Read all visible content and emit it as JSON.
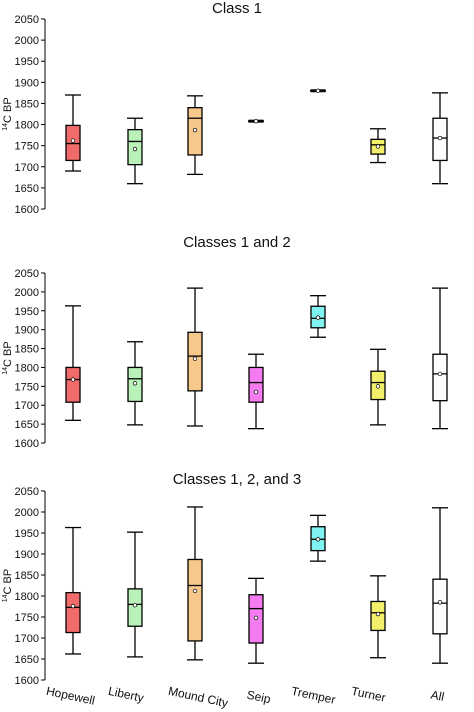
{
  "chart_data": [
    {
      "type": "boxplot",
      "title": "Class 1",
      "ylabel": "14C BP",
      "ylim": [
        1600,
        2050
      ],
      "yticks": [
        1600,
        1650,
        1700,
        1750,
        1800,
        1850,
        1900,
        1950,
        2000,
        2050
      ],
      "categories": [
        "Hopewell",
        "Liberty",
        "Mound City",
        "Seip",
        "Tremper",
        "Turner",
        "All"
      ],
      "colors": [
        "#f26b6b",
        "#b9f2b9",
        "#f6c98a",
        "#f26b6b",
        "#7ff2f2",
        "#f2ef6b",
        "#ffffff"
      ],
      "boxes": [
        {
          "min": 1690,
          "q1": 1715,
          "median": 1755,
          "q3": 1798,
          "max": 1870,
          "mean": 1762
        },
        {
          "min": 1660,
          "q1": 1705,
          "median": 1760,
          "q3": 1788,
          "max": 1815,
          "mean": 1742
        },
        {
          "min": 1682,
          "q1": 1728,
          "median": 1815,
          "q3": 1840,
          "max": 1868,
          "mean": 1787
        },
        {
          "min": 1808,
          "q1": 1808,
          "median": 1808,
          "q3": 1808,
          "max": 1808,
          "mean": 1808
        },
        {
          "min": 1880,
          "q1": 1880,
          "median": 1880,
          "q3": 1880,
          "max": 1880,
          "mean": 1880
        },
        {
          "min": 1710,
          "q1": 1730,
          "median": 1752,
          "q3": 1765,
          "max": 1790,
          "mean": 1748
        },
        {
          "min": 1660,
          "q1": 1715,
          "median": 1768,
          "q3": 1815,
          "max": 1875,
          "mean": 1768
        }
      ]
    },
    {
      "type": "boxplot",
      "title": "Classes 1 and 2",
      "ylabel": "14C BP",
      "ylim": [
        1600,
        2050
      ],
      "yticks": [
        1600,
        1650,
        1700,
        1750,
        1800,
        1850,
        1900,
        1950,
        2000,
        2050
      ],
      "categories": [
        "Hopewell",
        "Liberty",
        "Mound City",
        "Seip",
        "Tremper",
        "Turner",
        "All"
      ],
      "colors": [
        "#f26b6b",
        "#b9f2b9",
        "#f6c98a",
        "#f47cf0",
        "#7ff2f2",
        "#f2ef6b",
        "#ffffff"
      ],
      "boxes": [
        {
          "min": 1660,
          "q1": 1708,
          "median": 1768,
          "q3": 1800,
          "max": 1963,
          "mean": 1768
        },
        {
          "min": 1648,
          "q1": 1710,
          "median": 1770,
          "q3": 1800,
          "max": 1868,
          "mean": 1758
        },
        {
          "min": 1645,
          "q1": 1738,
          "median": 1830,
          "q3": 1893,
          "max": 2010,
          "mean": 1823
        },
        {
          "min": 1638,
          "q1": 1708,
          "median": 1760,
          "q3": 1800,
          "max": 1835,
          "mean": 1735
        },
        {
          "min": 1880,
          "q1": 1905,
          "median": 1930,
          "q3": 1962,
          "max": 1990,
          "mean": 1932
        },
        {
          "min": 1648,
          "q1": 1715,
          "median": 1760,
          "q3": 1790,
          "max": 1848,
          "mean": 1750
        },
        {
          "min": 1638,
          "q1": 1712,
          "median": 1783,
          "q3": 1835,
          "max": 2010,
          "mean": 1783
        }
      ]
    },
    {
      "type": "boxplot",
      "title": "Classes 1, 2, and 3",
      "ylabel": "14C BP",
      "ylim": [
        1600,
        2050
      ],
      "yticks": [
        1600,
        1650,
        1700,
        1750,
        1800,
        1850,
        1900,
        1950,
        2000,
        2050
      ],
      "categories": [
        "Hopewell",
        "Liberty",
        "Mound City",
        "Seip",
        "Tremper",
        "Turner",
        "All"
      ],
      "colors": [
        "#f26b6b",
        "#b9f2b9",
        "#f6c98a",
        "#f47cf0",
        "#7ff2f2",
        "#f2ef6b",
        "#ffffff"
      ],
      "boxes": [
        {
          "min": 1662,
          "q1": 1713,
          "median": 1773,
          "q3": 1808,
          "max": 1963,
          "mean": 1776
        },
        {
          "min": 1655,
          "q1": 1728,
          "median": 1780,
          "q3": 1817,
          "max": 1952,
          "mean": 1778
        },
        {
          "min": 1648,
          "q1": 1693,
          "median": 1825,
          "q3": 1887,
          "max": 2012,
          "mean": 1812
        },
        {
          "min": 1640,
          "q1": 1688,
          "median": 1770,
          "q3": 1803,
          "max": 1842,
          "mean": 1748
        },
        {
          "min": 1883,
          "q1": 1908,
          "median": 1935,
          "q3": 1965,
          "max": 1992,
          "mean": 1935
        },
        {
          "min": 1653,
          "q1": 1718,
          "median": 1760,
          "q3": 1787,
          "max": 1848,
          "mean": 1757
        },
        {
          "min": 1640,
          "q1": 1710,
          "median": 1783,
          "q3": 1840,
          "max": 2010,
          "mean": 1785
        }
      ]
    }
  ]
}
